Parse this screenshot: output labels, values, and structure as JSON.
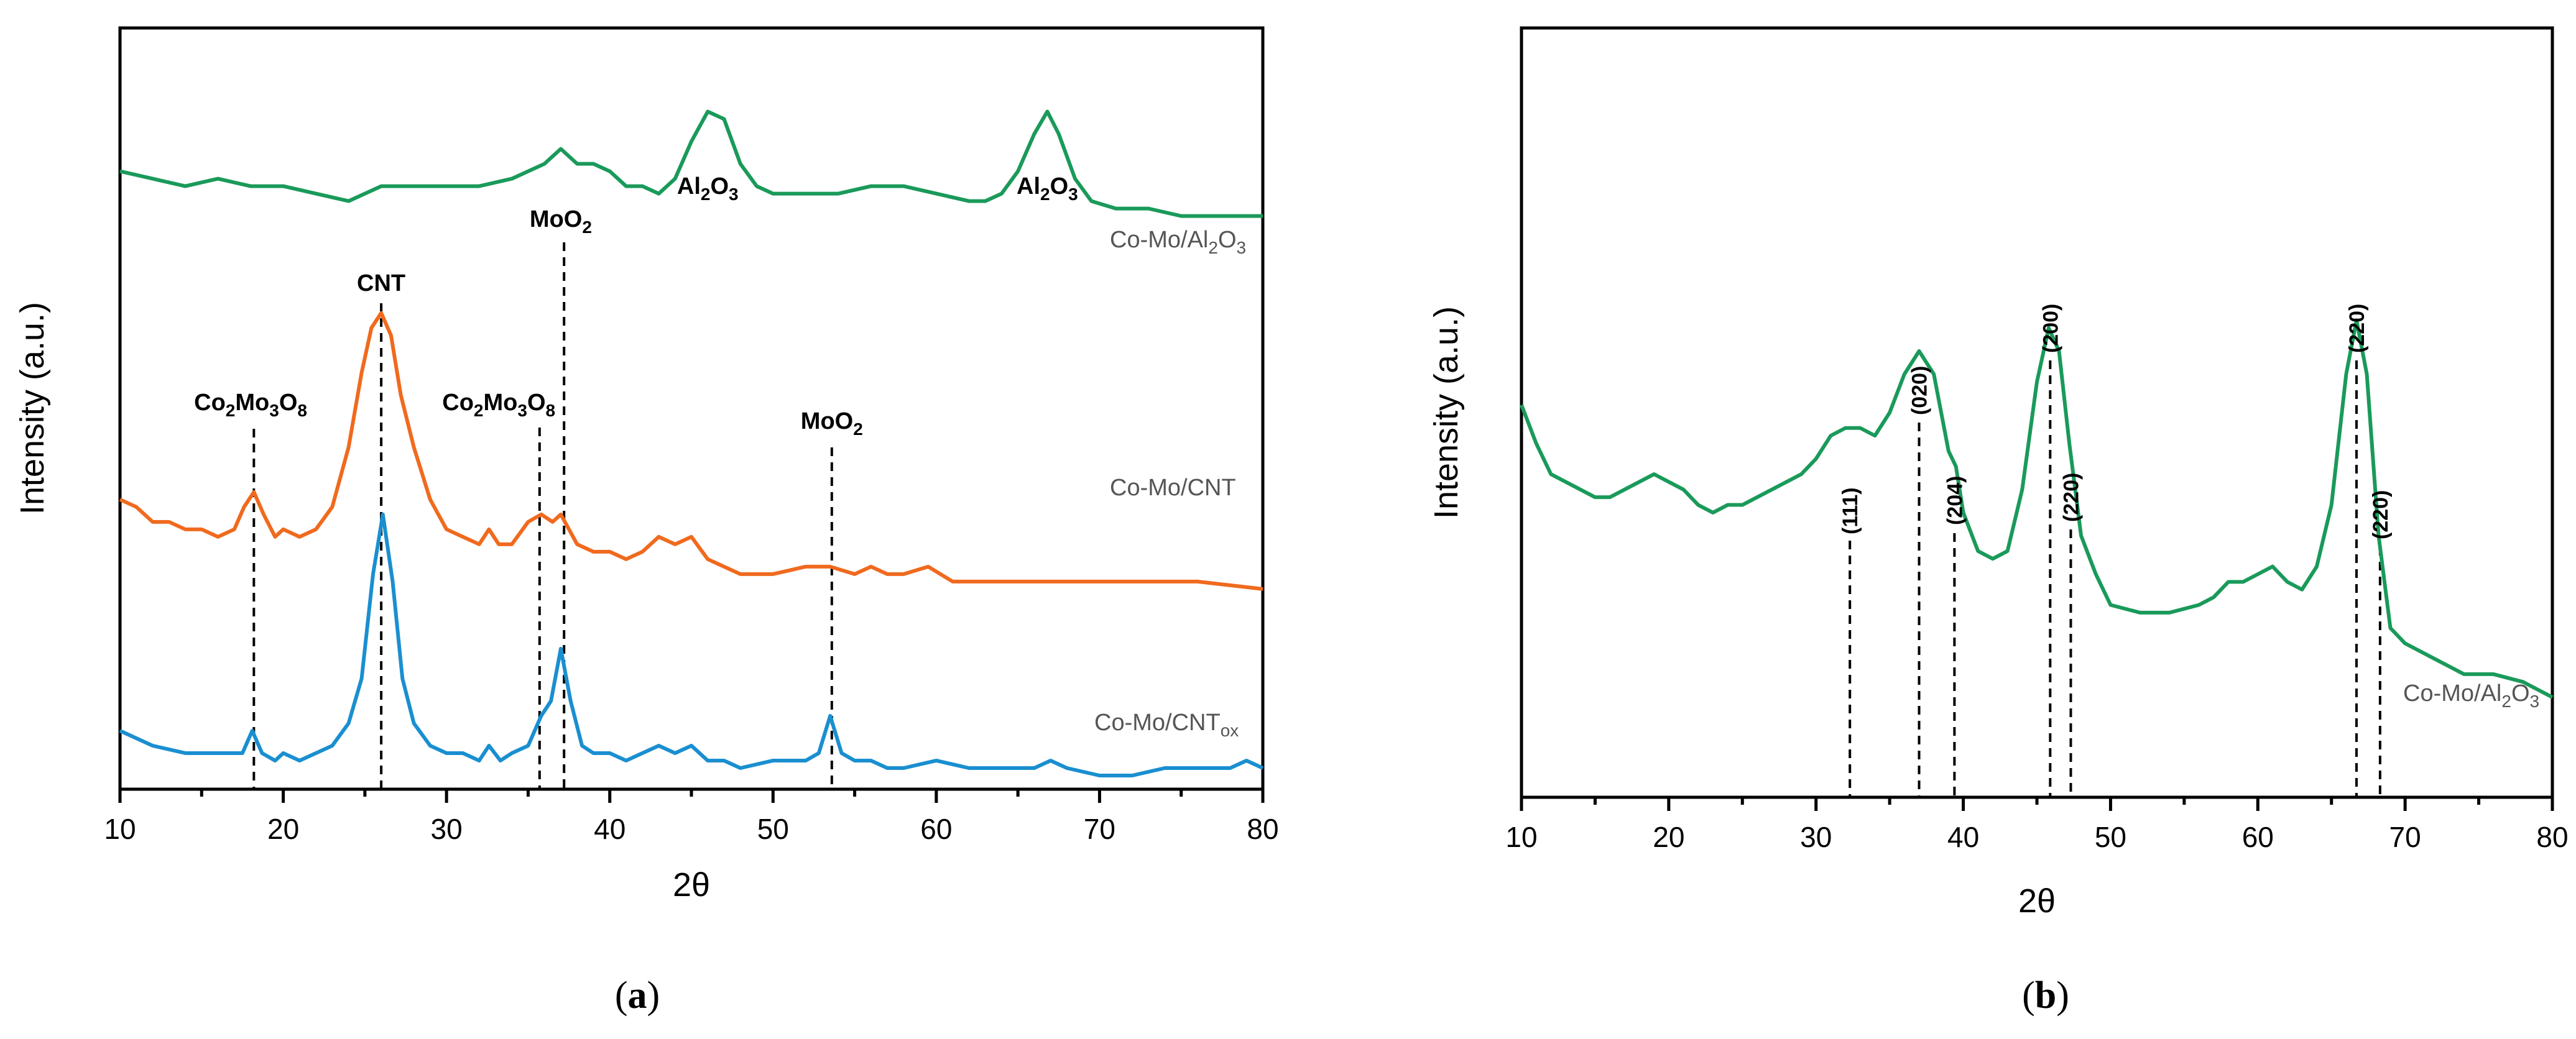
{
  "chart_data": [
    {
      "type": "line",
      "panel_label": "a",
      "xlabel": "2θ",
      "ylabel": "Intensity (a.u.)",
      "xlim": [
        10,
        80
      ],
      "xticks": [
        10,
        20,
        30,
        40,
        50,
        60,
        70,
        80
      ],
      "series": [
        {
          "name": "Co-Mo/Al2O3",
          "label_main": "Co-Mo/Al",
          "label_sub1": "2",
          "label_mid": "O",
          "label_sub2": "3",
          "color": "#1a9a5a",
          "x": [
            10,
            12,
            14,
            16,
            18,
            20,
            22,
            24,
            26,
            28,
            30,
            32,
            34,
            35,
            36,
            37,
            38,
            39,
            40,
            41,
            42,
            43,
            44,
            45,
            46,
            47,
            48,
            49,
            50,
            52,
            54,
            56,
            58,
            60,
            62,
            63,
            64,
            65,
            66,
            66.8,
            67.5,
            68.5,
            69.5,
            71,
            73,
            75,
            77,
            80
          ],
          "y": [
            0.82,
            0.81,
            0.8,
            0.81,
            0.8,
            0.8,
            0.79,
            0.78,
            0.8,
            0.8,
            0.8,
            0.8,
            0.81,
            0.82,
            0.83,
            0.85,
            0.83,
            0.83,
            0.82,
            0.8,
            0.8,
            0.79,
            0.81,
            0.86,
            0.9,
            0.89,
            0.83,
            0.8,
            0.79,
            0.79,
            0.79,
            0.8,
            0.8,
            0.79,
            0.78,
            0.78,
            0.79,
            0.82,
            0.87,
            0.9,
            0.87,
            0.81,
            0.78,
            0.77,
            0.77,
            0.76,
            0.76,
            0.76
          ]
        },
        {
          "name": "Co-Mo/CNT",
          "label_main": "Co-Mo/CNT",
          "color": "#f06a1e",
          "x": [
            10,
            11,
            12,
            13,
            14,
            15,
            16,
            17,
            17.6,
            18.2,
            18.8,
            19.5,
            20,
            21,
            22,
            23,
            24,
            24.8,
            25.4,
            26,
            26.6,
            27.2,
            28,
            29,
            30,
            31,
            32,
            32.6,
            33.2,
            34,
            35,
            35.8,
            36.5,
            37,
            37.5,
            38,
            39,
            40,
            41,
            42,
            43,
            44,
            45,
            46,
            47,
            48,
            49,
            50,
            52,
            53.5,
            55,
            56,
            57,
            58,
            59.5,
            61,
            62,
            63,
            65,
            67,
            70,
            73,
            76,
            80
          ],
          "y": [
            0.38,
            0.37,
            0.35,
            0.35,
            0.34,
            0.34,
            0.33,
            0.34,
            0.37,
            0.39,
            0.36,
            0.33,
            0.34,
            0.33,
            0.34,
            0.37,
            0.45,
            0.55,
            0.61,
            0.63,
            0.6,
            0.52,
            0.45,
            0.38,
            0.34,
            0.33,
            0.32,
            0.34,
            0.32,
            0.32,
            0.35,
            0.36,
            0.35,
            0.36,
            0.34,
            0.32,
            0.31,
            0.31,
            0.3,
            0.31,
            0.33,
            0.32,
            0.33,
            0.3,
            0.29,
            0.28,
            0.28,
            0.28,
            0.29,
            0.29,
            0.28,
            0.29,
            0.28,
            0.28,
            0.29,
            0.27,
            0.27,
            0.27,
            0.27,
            0.27,
            0.27,
            0.27,
            0.27,
            0.26
          ]
        },
        {
          "name": "Co-Mo/CNTox",
          "label_main": "Co-Mo/CNT",
          "label_sub": "ox",
          "color": "#1a8fd0",
          "x": [
            10,
            12,
            14,
            16,
            17.5,
            18.1,
            18.7,
            19.5,
            20,
            21,
            22,
            23,
            24,
            24.8,
            25.5,
            26.1,
            26.7,
            27.3,
            28,
            29,
            30,
            31,
            32,
            32.6,
            33.3,
            34,
            35,
            35.8,
            36.4,
            37,
            37.6,
            38.3,
            39,
            40,
            41,
            42,
            43,
            44,
            45,
            46,
            47,
            48,
            50,
            52,
            52.8,
            53.5,
            54.2,
            55,
            56,
            57,
            58,
            60,
            62,
            64,
            66,
            67,
            68,
            70,
            72,
            74,
            76,
            78,
            79,
            80
          ],
          "y": [
            0.07,
            0.05,
            0.04,
            0.04,
            0.04,
            0.07,
            0.04,
            0.03,
            0.04,
            0.03,
            0.04,
            0.05,
            0.08,
            0.14,
            0.28,
            0.36,
            0.27,
            0.14,
            0.08,
            0.05,
            0.04,
            0.04,
            0.03,
            0.05,
            0.03,
            0.04,
            0.05,
            0.09,
            0.11,
            0.18,
            0.11,
            0.05,
            0.04,
            0.04,
            0.03,
            0.04,
            0.05,
            0.04,
            0.05,
            0.03,
            0.03,
            0.02,
            0.03,
            0.03,
            0.04,
            0.09,
            0.04,
            0.03,
            0.03,
            0.02,
            0.02,
            0.03,
            0.02,
            0.02,
            0.02,
            0.03,
            0.02,
            0.01,
            0.01,
            0.02,
            0.02,
            0.02,
            0.03,
            0.02
          ]
        }
      ],
      "annotations": [
        {
          "main": "Co",
          "s1": "2",
          "m2": "Mo",
          "s2": "3",
          "m3": "O",
          "s3": "8",
          "x": 18.2,
          "label_x": 18.0
        },
        {
          "main": "CNT",
          "x": 26.0,
          "label_x": 26.0
        },
        {
          "main": "Co",
          "s1": "2",
          "m2": "Mo",
          "s2": "3",
          "m3": "O",
          "s3": "8",
          "x": 35.7,
          "label_x": 33.2
        },
        {
          "main": "MoO",
          "s1": "2",
          "x": 37.2,
          "label_x": 37.0
        },
        {
          "main": "MoO",
          "s1": "2",
          "x": 53.6,
          "label_x": 53.6
        },
        {
          "main": "Al",
          "s1": "2",
          "m2": "O",
          "s2": "3",
          "label_x": 46.0
        },
        {
          "main": "Al",
          "s1": "2",
          "m2": "O",
          "s2": "3",
          "label_x": 66.8
        }
      ]
    },
    {
      "type": "line",
      "panel_label": "b",
      "xlabel": "2θ",
      "ylabel": "Intensity (a.u.)",
      "xlim": [
        10,
        80
      ],
      "xticks": [
        10,
        20,
        30,
        40,
        50,
        60,
        70,
        80
      ],
      "series": [
        {
          "name": "Co-Mo/Al2O3",
          "label_main": "Co-Mo/Al",
          "label_sub1": "2",
          "label_mid": "O",
          "label_sub2": "3",
          "color": "#1a9a5a",
          "x": [
            10,
            11,
            12,
            13,
            14,
            15,
            16,
            17,
            18,
            19,
            20,
            21,
            22,
            23,
            24,
            25,
            26,
            27,
            28,
            29,
            30,
            31,
            32,
            33,
            34,
            35,
            36,
            37,
            38,
            39,
            39.5,
            40,
            41,
            42,
            43,
            44,
            45,
            45.8,
            46.5,
            47.2,
            48,
            49,
            50,
            52,
            54,
            56,
            57,
            58,
            59,
            60,
            61,
            62,
            63,
            64,
            65,
            66,
            66.7,
            67.4,
            68.2,
            69,
            70,
            72,
            74,
            76,
            78,
            80
          ],
          "y": [
            0.51,
            0.46,
            0.42,
            0.41,
            0.4,
            0.39,
            0.39,
            0.4,
            0.41,
            0.42,
            0.41,
            0.4,
            0.38,
            0.37,
            0.38,
            0.38,
            0.39,
            0.4,
            0.41,
            0.42,
            0.44,
            0.47,
            0.48,
            0.48,
            0.47,
            0.5,
            0.55,
            0.58,
            0.55,
            0.45,
            0.43,
            0.37,
            0.32,
            0.31,
            0.32,
            0.4,
            0.54,
            0.61,
            0.58,
            0.46,
            0.34,
            0.29,
            0.25,
            0.24,
            0.24,
            0.25,
            0.26,
            0.28,
            0.28,
            0.29,
            0.3,
            0.28,
            0.27,
            0.3,
            0.38,
            0.55,
            0.62,
            0.55,
            0.34,
            0.22,
            0.2,
            0.18,
            0.16,
            0.16,
            0.15,
            0.13
          ]
        }
      ],
      "reference_lines": [
        {
          "x": 32.3,
          "label": "(111)"
        },
        {
          "x": 37.0,
          "label": "(020)"
        },
        {
          "x": 39.4,
          "label": "(204)"
        },
        {
          "x": 45.9,
          "label": "(200)"
        },
        {
          "x": 47.3,
          "label": "(220)"
        },
        {
          "x": 66.7,
          "label": "(220)"
        },
        {
          "x": 68.3,
          "label": "(220)"
        }
      ]
    }
  ]
}
